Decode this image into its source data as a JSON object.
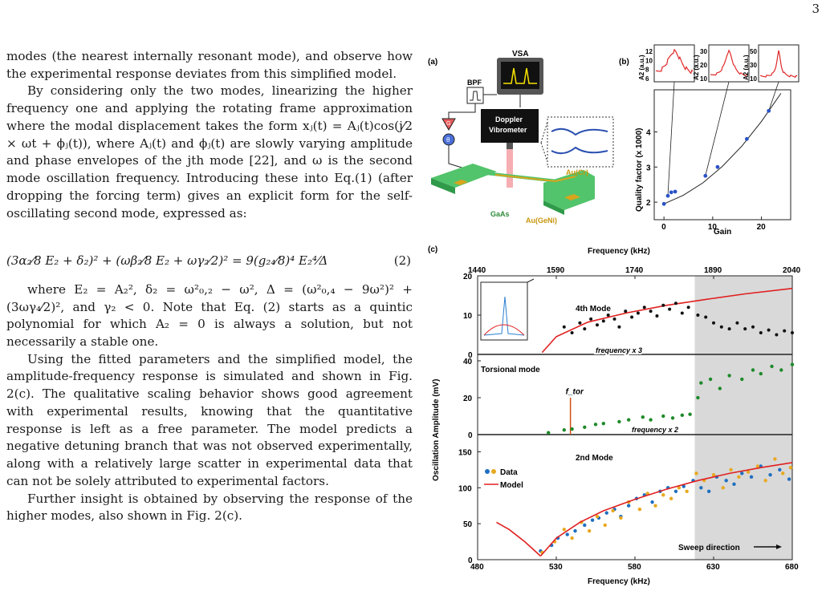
{
  "page_number": "3",
  "body": {
    "paragraphs": [
      "modes (the nearest internally resonant mode), and observe how the experimental response deviates from this simplified model.",
      "By considering only the two modes, linearizing the higher frequency one and applying the rotating frame approximation where the modal displacement takes the form xⱼ(t) = Aⱼ(t)cos(j⁄2 × ωt + ϕⱼ(t)), where Aⱼ(t) and ϕⱼ(t) are slowly varying amplitude and phase envelopes of the jth mode [22], and ω is the second mode oscillation frequency. Introducing these into Eq.(1) (after dropping the forcing term) gives an explicit form for the self-oscillating second mode, expressed as:"
    ],
    "equation": "(3α₂⁄8 E₂ + δ₂)² + (ωβ₂⁄8 E₂ + ωγ₂⁄2)² = 9(g₂₄⁄8)⁴ E₂⁴⁄Δ",
    "equation_number": "(2)",
    "after_equation": [
      "where E₂ = A₂², δ₂ = ω²₀,₂ − ω², Δ = (ω²₀,₄ − 9ω²)² + (3ωγ₄⁄2)², and γ₂ < 0. Note that Eq. (2) starts as a quintic polynomial for which A₂ = 0 is always a solution, but not necessarily a stable one.",
      "Using the fitted parameters and the simplified model, the amplitude-frequency response is simulated and shown in Fig. 2(c). The qualitative scaling behavior shows good agreement with experimental results, knowing that the quantitative response is left as a free parameter. The model predicts a negative detuning branch that was not observed experimentally, along with a relatively large scatter in experimental data that can not be solely attributed to experimental factors.",
      "Further insight is obtained by observing the response of the higher modes, also shown in Fig. 2(c)."
    ]
  },
  "figure": {
    "panel_a": {
      "label": "(a)",
      "vsa": "VSA",
      "bpf": "BPF",
      "vibrometer_line1": "Doppler",
      "vibrometer_line2": "Vibrometer",
      "gain_symbol": "G",
      "phase_symbol": "θ",
      "au_cr": "Au(Cr)",
      "gaas": "GaAs",
      "au_geni": "Au(GeNi)"
    },
    "chart_data": [
      {
        "type": "scatter",
        "panel": "(b)",
        "xlabel": "Gain",
        "ylabel": "Quality factor (x 1000)",
        "xlim": [
          -2,
          26
        ],
        "ylim": [
          1.5,
          5.2
        ],
        "xticks": [
          "0",
          "10",
          "20"
        ],
        "yticks": [
          "2",
          "3",
          "4"
        ],
        "points": [
          [
            0,
            1.95
          ],
          [
            0.8,
            2.18
          ],
          [
            1.5,
            2.28
          ],
          [
            2.3,
            2.3
          ],
          [
            8.5,
            2.75
          ],
          [
            11,
            3.0
          ],
          [
            17,
            3.8
          ],
          [
            21.5,
            4.6
          ]
        ],
        "fit_curve": [
          [
            0,
            1.95
          ],
          [
            4,
            2.2
          ],
          [
            8,
            2.55
          ],
          [
            12,
            3.02
          ],
          [
            16,
            3.6
          ],
          [
            20,
            4.3
          ],
          [
            24,
            5.1
          ]
        ],
        "insets": [
          {
            "ylabel": "A2 (a.u.)",
            "yticks": [
              "12",
              "10",
              "8",
              "6"
            ]
          },
          {
            "ylabel": "A2 (a.u.)",
            "yticks": [
              "30",
              "20",
              "10"
            ]
          },
          {
            "ylabel": "A2 (a.u.)",
            "yticks": [
              "50",
              "30",
              "10"
            ]
          }
        ]
      },
      {
        "type": "scatter",
        "panel": "(c)",
        "top_axis_title": "Frequency (kHz)",
        "top_ticks": [
          "1440",
          "1590",
          "1740",
          "1890",
          "2040"
        ],
        "bottom_axis_title": "Frequency (kHz)",
        "bottom_ticks": [
          "480",
          "530",
          "580",
          "630",
          "680"
        ],
        "ylabel": "Oscillation Amplitude (mV)",
        "xlim": [
          480,
          680
        ],
        "shaded_region": [
          618,
          680
        ],
        "subpanels": [
          {
            "title": "4th Mode",
            "yticks": [
              "0",
              "10",
              "20"
            ],
            "ylim": [
              0,
              20
            ],
            "axis_note": "frequency x 3",
            "model_points": [
              [
                521,
                0.5
              ],
              [
                530,
                4.5
              ],
              [
                550,
                8.2
              ],
              [
                575,
                10.6
              ],
              [
                600,
                12.5
              ],
              [
                625,
                14.0
              ],
              [
                650,
                15.4
              ],
              [
                680,
                16.8
              ]
            ],
            "data": [
              [
                535,
                7
              ],
              [
                540,
                5.5
              ],
              [
                545,
                8
              ],
              [
                548,
                6.5
              ],
              [
                552,
                9
              ],
              [
                556,
                7.5
              ],
              [
                560,
                8.5
              ],
              [
                563,
                10
              ],
              [
                567,
                9
              ],
              [
                570,
                7
              ],
              [
                574,
                11
              ],
              [
                578,
                9.5
              ],
              [
                582,
                10.5
              ],
              [
                586,
                12
              ],
              [
                590,
                11
              ],
              [
                594,
                9.8
              ],
              [
                598,
                12.5
              ],
              [
                602,
                11.5
              ],
              [
                606,
                13
              ],
              [
                610,
                10.5
              ],
              [
                614,
                12
              ],
              [
                620,
                10
              ],
              [
                625,
                9.5
              ],
              [
                630,
                8
              ],
              [
                635,
                7
              ],
              [
                640,
                6.5
              ],
              [
                645,
                8
              ],
              [
                650,
                6.5
              ],
              [
                655,
                7
              ],
              [
                660,
                5.5
              ],
              [
                665,
                6.2
              ],
              [
                670,
                5
              ],
              [
                675,
                6
              ],
              [
                680,
                5.5
              ]
            ]
          },
          {
            "title": "Torsional mode",
            "yticks": [
              "0",
              "20",
              "40"
            ],
            "ylim": [
              0,
              40
            ],
            "axis_note": "frequency x 2",
            "marker_label": "f_tor",
            "marker_x": 539,
            "data": [
              [
                525,
                1
              ],
              [
                535,
                2.5
              ],
              [
                540,
                3
              ],
              [
                548,
                4
              ],
              [
                555,
                5.5
              ],
              [
                560,
                6
              ],
              [
                570,
                7
              ],
              [
                576,
                8
              ],
              [
                585,
                9.5
              ],
              [
                590,
                8
              ],
              [
                598,
                10
              ],
              [
                604,
                9
              ],
              [
                610,
                10.5
              ],
              [
                615,
                11
              ],
              [
                620,
                20
              ],
              [
                622,
                28
              ],
              [
                628,
                30
              ],
              [
                634,
                25
              ],
              [
                640,
                32
              ],
              [
                648,
                30
              ],
              [
                655,
                35
              ],
              [
                660,
                33
              ],
              [
                667,
                37
              ],
              [
                673,
                35
              ],
              [
                680,
                38
              ]
            ]
          },
          {
            "title": "2nd Mode",
            "yticks": [
              "0",
              "50",
              "100",
              "150"
            ],
            "ylim": [
              0,
              165
            ],
            "legend": [
              "Data",
              "Model"
            ],
            "annotation": "Sweep direction",
            "model_upper": [
              [
                520,
                5
              ],
              [
                530,
                30
              ],
              [
                545,
                52
              ],
              [
                560,
                68
              ],
              [
                580,
                84
              ],
              [
                600,
                98
              ],
              [
                620,
                110
              ],
              [
                640,
                120
              ],
              [
                660,
                128
              ],
              [
                680,
                135
              ]
            ],
            "model_lower": [
              [
                492,
                52
              ],
              [
                500,
                42
              ],
              [
                510,
                25
              ],
              [
                520,
                5
              ]
            ],
            "data_blue": [
              [
                520,
                12
              ],
              [
                527,
                20
              ],
              [
                531,
                30
              ],
              [
                537,
                35
              ],
              [
                542,
                40
              ],
              [
                548,
                48
              ],
              [
                553,
                55
              ],
              [
                557,
                58
              ],
              [
                562,
                65
              ],
              [
                567,
                70
              ],
              [
                571,
                60
              ],
              [
                576,
                75
              ],
              [
                581,
                85
              ],
              [
                586,
                90
              ],
              [
                591,
                80
              ],
              [
                596,
                95
              ],
              [
                601,
                100
              ],
              [
                606,
                95
              ],
              [
                611,
                102
              ],
              [
                617,
                110
              ],
              [
                622,
                100
              ],
              [
                627,
                95
              ],
              [
                632,
                115
              ],
              [
                638,
                110
              ],
              [
                643,
                105
              ],
              [
                648,
                120
              ],
              [
                654,
                115
              ],
              [
                660,
                130
              ],
              [
                666,
                118
              ],
              [
                672,
                125
              ],
              [
                678,
                112
              ]
            ],
            "data_orange": [
              [
                521,
                10
              ],
              [
                529,
                25
              ],
              [
                535,
                42
              ],
              [
                540,
                30
              ],
              [
                546,
                52
              ],
              [
                551,
                40
              ],
              [
                556,
                60
              ],
              [
                561,
                48
              ],
              [
                566,
                68
              ],
              [
                571,
                58
              ],
              [
                576,
                80
              ],
              [
                583,
                70
              ],
              [
                588,
                92
              ],
              [
                593,
                75
              ],
              [
                598,
                90
              ],
              [
                603,
                85
              ],
              [
                608,
                100
              ],
              [
                613,
                95
              ],
              [
                619,
                120
              ],
              [
                624,
                110
              ],
              [
                630,
                118
              ],
              [
                636,
                100
              ],
              [
                641,
                125
              ],
              [
                646,
                115
              ],
              [
                652,
                122
              ],
              [
                658,
                130
              ],
              [
                663,
                110
              ],
              [
                669,
                140
              ],
              [
                674,
                120
              ],
              [
                679,
                128
              ]
            ]
          }
        ]
      }
    ]
  }
}
